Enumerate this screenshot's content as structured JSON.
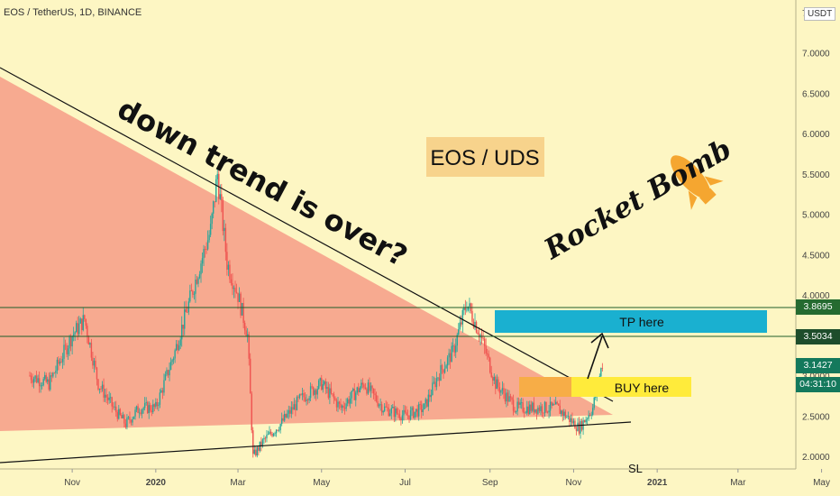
{
  "header": {
    "symbol": "EOS / TetherUS, 1D, BINANCE",
    "currency": "USDT"
  },
  "annotations": {
    "trend_text": "down trend is over?",
    "pair_label": "EOS / UDS",
    "brand": "Rocket Bomb",
    "tp_label": "TP here",
    "buy_label": "BUY here",
    "sl_label": "SL"
  },
  "badges": {
    "upper_level": "3.8695",
    "lower_level": "3.5034",
    "last_price": "3.1427",
    "countdown": "04:31:10"
  },
  "colors": {
    "background": "#fdf6c3",
    "triangle": "#f7a58d",
    "up": "#26a69a",
    "down": "#ef5350",
    "tp_box": "#1ab0d0",
    "buy_box": "#ffeb3b",
    "buy_box_overlay": "#f6a24a",
    "rocket": "#f5a630"
  },
  "chart_data": {
    "type": "candlestick",
    "x_tick_labels": [
      "Nov",
      "2020",
      "Mar",
      "May",
      "Jul",
      "Sep",
      "Nov",
      "2021",
      "Mar",
      "May"
    ],
    "y_tick_labels": [
      "2.0000",
      "2.5000",
      "3.0000",
      "3.5000",
      "4.0000",
      "4.5000",
      "5.0000",
      "5.5000",
      "6.0000",
      "6.5000",
      "7.0000",
      "7.5000"
    ],
    "y_ticks": [
      2.0,
      2.5,
      3.0,
      3.5,
      4.0,
      4.5,
      5.0,
      5.5,
      6.0,
      6.5,
      7.0,
      7.5
    ],
    "ylim": [
      1.85,
      7.85
    ],
    "horizontal_levels": [
      3.8695,
      3.5034
    ],
    "last_price": 3.1427,
    "close_path": [
      [
        "2019-10-01",
        3.0
      ],
      [
        "2019-10-15",
        2.9
      ],
      [
        "2019-11-01",
        3.5
      ],
      [
        "2019-11-10",
        3.7
      ],
      [
        "2019-11-20",
        2.9
      ],
      [
        "2019-12-01",
        2.6
      ],
      [
        "2019-12-10",
        2.4
      ],
      [
        "2019-12-20",
        2.6
      ],
      [
        "2020-01-01",
        2.6
      ],
      [
        "2020-01-15",
        3.3
      ],
      [
        "2020-02-01",
        4.3
      ],
      [
        "2020-02-10",
        4.8
      ],
      [
        "2020-02-15",
        5.5
      ],
      [
        "2020-02-22",
        4.4
      ],
      [
        "2020-03-01",
        4.0
      ],
      [
        "2020-03-08",
        3.5
      ],
      [
        "2020-03-12",
        2.0
      ],
      [
        "2020-03-20",
        2.2
      ],
      [
        "2020-04-01",
        2.4
      ],
      [
        "2020-04-15",
        2.7
      ],
      [
        "2020-05-01",
        2.9
      ],
      [
        "2020-05-15",
        2.6
      ],
      [
        "2020-06-01",
        2.9
      ],
      [
        "2020-06-15",
        2.6
      ],
      [
        "2020-07-01",
        2.5
      ],
      [
        "2020-07-15",
        2.6
      ],
      [
        "2020-07-25",
        3.0
      ],
      [
        "2020-08-05",
        3.3
      ],
      [
        "2020-08-15",
        3.9
      ],
      [
        "2020-08-25",
        3.5
      ],
      [
        "2020-09-05",
        2.9
      ],
      [
        "2020-09-20",
        2.6
      ],
      [
        "2020-10-01",
        2.6
      ],
      [
        "2020-10-20",
        2.6
      ],
      [
        "2020-11-05",
        2.35
      ],
      [
        "2020-11-15",
        2.6
      ],
      [
        "2020-11-22",
        3.15
      ]
    ]
  }
}
